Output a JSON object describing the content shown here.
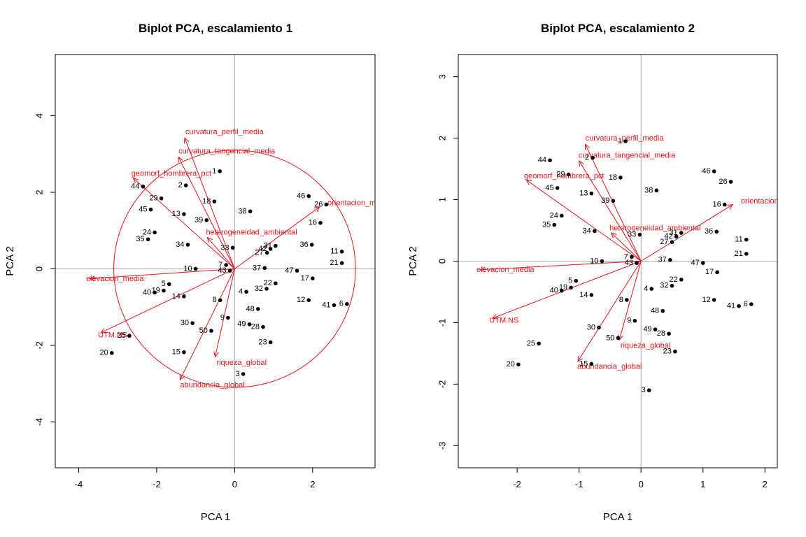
{
  "chart_data": [
    {
      "type": "scatter",
      "subtype": "pca-biplot",
      "title": "Biplot PCA, escalamiento 1",
      "xlabel": "PCA  1",
      "ylabel": "PCA  2",
      "xlim": [
        -4.6,
        3.6
      ],
      "ylim": [
        -5.2,
        5.6
      ],
      "xticks": [
        -4,
        -2,
        0,
        2
      ],
      "yticks": [
        -4,
        -2,
        0,
        2,
        4
      ],
      "reference_lines": [
        0,
        0
      ],
      "circle_radius": 3.1,
      "colors": {
        "points": "#000000",
        "arrows": "#e8141a",
        "axes": "#aaaaaa"
      },
      "points": [
        {
          "label": "1",
          "x": -0.38,
          "y": 2.55
        },
        {
          "label": "2",
          "x": -1.25,
          "y": 2.18
        },
        {
          "label": "3",
          "x": 0.22,
          "y": -2.75
        },
        {
          "label": "4",
          "x": 0.3,
          "y": -0.6
        },
        {
          "label": "5",
          "x": -1.68,
          "y": -0.4
        },
        {
          "label": "6",
          "x": 2.88,
          "y": -0.92
        },
        {
          "label": "7",
          "x": -0.22,
          "y": 0.1
        },
        {
          "label": "8",
          "x": -0.37,
          "y": -0.82
        },
        {
          "label": "9",
          "x": -0.17,
          "y": -1.28
        },
        {
          "label": "10",
          "x": -1.0,
          "y": 0.0
        },
        {
          "label": "11",
          "x": 2.75,
          "y": 0.45
        },
        {
          "label": "12",
          "x": 1.9,
          "y": -0.82
        },
        {
          "label": "13",
          "x": -1.3,
          "y": 1.43
        },
        {
          "label": "14",
          "x": -1.3,
          "y": -0.72
        },
        {
          "label": "15",
          "x": -1.3,
          "y": -2.18
        },
        {
          "label": "16",
          "x": 2.2,
          "y": 1.2
        },
        {
          "label": "17",
          "x": 2.0,
          "y": -0.25
        },
        {
          "label": "18",
          "x": -0.52,
          "y": 1.76
        },
        {
          "label": "19",
          "x": -1.82,
          "y": -0.57
        },
        {
          "label": "20",
          "x": -3.15,
          "y": -2.2
        },
        {
          "label": "21",
          "x": 2.75,
          "y": 0.15
        },
        {
          "label": "22",
          "x": 1.05,
          "y": -0.38
        },
        {
          "label": "23",
          "x": 0.92,
          "y": -1.92
        },
        {
          "label": "24",
          "x": -2.05,
          "y": 0.95
        },
        {
          "label": "25",
          "x": -2.7,
          "y": -1.75
        },
        {
          "label": "26",
          "x": 2.35,
          "y": 1.68
        },
        {
          "label": "27",
          "x": 0.83,
          "y": 0.42
        },
        {
          "label": "28",
          "x": 0.73,
          "y": -1.52
        },
        {
          "label": "29",
          "x": -1.88,
          "y": 1.84
        },
        {
          "label": "30",
          "x": -1.08,
          "y": -1.42
        },
        {
          "label": "31",
          "x": 1.05,
          "y": 0.6
        },
        {
          "label": "32",
          "x": 0.82,
          "y": -0.52
        },
        {
          "label": "33",
          "x": -0.05,
          "y": 0.55
        },
        {
          "label": "34",
          "x": -1.2,
          "y": 0.63
        },
        {
          "label": "35",
          "x": -2.22,
          "y": 0.77
        },
        {
          "label": "36",
          "x": 1.98,
          "y": 0.63
        },
        {
          "label": "37",
          "x": 0.77,
          "y": 0.02
        },
        {
          "label": "38",
          "x": 0.4,
          "y": 1.5
        },
        {
          "label": "39",
          "x": -0.72,
          "y": 1.27
        },
        {
          "label": "40",
          "x": -2.05,
          "y": -0.62
        },
        {
          "label": "41",
          "x": 2.55,
          "y": -0.95
        },
        {
          "label": "42",
          "x": 0.92,
          "y": 0.52
        },
        {
          "label": "43",
          "x": -0.12,
          "y": -0.05
        },
        {
          "label": "44",
          "x": -2.35,
          "y": 2.15
        },
        {
          "label": "45",
          "x": -2.15,
          "y": 1.55
        },
        {
          "label": "46",
          "x": 1.9,
          "y": 1.9
        },
        {
          "label": "47",
          "x": 1.6,
          "y": -0.05
        },
        {
          "label": "48",
          "x": 0.6,
          "y": -1.05
        },
        {
          "label": "49",
          "x": 0.38,
          "y": -1.45
        },
        {
          "label": "50",
          "x": -0.6,
          "y": -1.62
        }
      ],
      "arrows": [
        {
          "label": "curvatura_perfil_media",
          "x": -1.28,
          "y": 3.42
        },
        {
          "label": "curvatura_tangencial_media",
          "x": -1.44,
          "y": 2.92
        },
        {
          "label": "geomorf_hombrera_pct",
          "x": -2.6,
          "y": 2.37
        },
        {
          "label": "orientacion_media",
          "x": 2.18,
          "y": 1.62
        },
        {
          "label": "heterogeneidad_ambiental",
          "x": -0.7,
          "y": 0.82
        },
        {
          "label": "elevacion_media",
          "x": -3.72,
          "y": -0.26
        },
        {
          "label": "UTM.NS",
          "x": -3.43,
          "y": -1.67
        },
        {
          "label": "riqueza_global",
          "x": -0.5,
          "y": -2.3
        },
        {
          "label": "abundancia_global",
          "x": -1.4,
          "y": -2.9
        }
      ]
    },
    {
      "type": "scatter",
      "subtype": "pca-biplot",
      "title": "Biplot PCA, escalamiento 2",
      "xlabel": "PCA  1",
      "ylabel": "PCA  2",
      "xlim": [
        -2.95,
        2.2
      ],
      "ylim": [
        -3.36,
        3.36
      ],
      "xticks": [
        -2,
        -1,
        0,
        1,
        2
      ],
      "yticks": [
        -3,
        -2,
        -1,
        0,
        1,
        2,
        3
      ],
      "reference_lines": [
        0,
        0
      ],
      "colors": {
        "points": "#000000",
        "arrows": "#e8141a",
        "axes": "#aaaaaa"
      },
      "points": [
        {
          "label": "1",
          "x": -0.25,
          "y": 1.95
        },
        {
          "label": "2",
          "x": -0.78,
          "y": 1.68
        },
        {
          "label": "3",
          "x": 0.13,
          "y": -2.1
        },
        {
          "label": "4",
          "x": 0.17,
          "y": -0.45
        },
        {
          "label": "5",
          "x": -1.05,
          "y": -0.32
        },
        {
          "label": "6",
          "x": 1.78,
          "y": -0.7
        },
        {
          "label": "7",
          "x": -0.15,
          "y": 0.07
        },
        {
          "label": "8",
          "x": -0.23,
          "y": -0.63
        },
        {
          "label": "9",
          "x": -0.1,
          "y": -0.97
        },
        {
          "label": "10",
          "x": -0.63,
          "y": 0.0
        },
        {
          "label": "11",
          "x": 1.7,
          "y": 0.35
        },
        {
          "label": "12",
          "x": 1.18,
          "y": -0.63
        },
        {
          "label": "13",
          "x": -0.8,
          "y": 1.1
        },
        {
          "label": "14",
          "x": -0.8,
          "y": -0.55
        },
        {
          "label": "15",
          "x": -0.8,
          "y": -1.67
        },
        {
          "label": "16",
          "x": 1.35,
          "y": 0.92
        },
        {
          "label": "17",
          "x": 1.23,
          "y": -0.18
        },
        {
          "label": "18",
          "x": -0.33,
          "y": 1.36
        },
        {
          "label": "19",
          "x": -1.13,
          "y": -0.43
        },
        {
          "label": "20",
          "x": -1.98,
          "y": -1.68
        },
        {
          "label": "21",
          "x": 1.7,
          "y": 0.12
        },
        {
          "label": "22",
          "x": 0.65,
          "y": -0.3
        },
        {
          "label": "23",
          "x": 0.55,
          "y": -1.47
        },
        {
          "label": "24",
          "x": -1.28,
          "y": 0.74
        },
        {
          "label": "25",
          "x": -1.65,
          "y": -1.34
        },
        {
          "label": "26",
          "x": 1.45,
          "y": 1.29
        },
        {
          "label": "27",
          "x": 0.5,
          "y": 0.31
        },
        {
          "label": "28",
          "x": 0.45,
          "y": -1.18
        },
        {
          "label": "29",
          "x": -1.17,
          "y": 1.41
        },
        {
          "label": "30",
          "x": -0.68,
          "y": -1.08
        },
        {
          "label": "31",
          "x": 0.65,
          "y": 0.46
        },
        {
          "label": "32",
          "x": 0.5,
          "y": -0.4
        },
        {
          "label": "33",
          "x": -0.02,
          "y": 0.43
        },
        {
          "label": "34",
          "x": -0.75,
          "y": 0.49
        },
        {
          "label": "35",
          "x": -1.4,
          "y": 0.59
        },
        {
          "label": "36",
          "x": 1.22,
          "y": 0.48
        },
        {
          "label": "37",
          "x": 0.47,
          "y": 0.02
        },
        {
          "label": "38",
          "x": 0.25,
          "y": 1.15
        },
        {
          "label": "39",
          "x": -0.45,
          "y": 0.98
        },
        {
          "label": "40",
          "x": -1.28,
          "y": -0.48
        },
        {
          "label": "41",
          "x": 1.58,
          "y": -0.73
        },
        {
          "label": "42",
          "x": 0.57,
          "y": 0.4
        },
        {
          "label": "43",
          "x": -0.07,
          "y": -0.03
        },
        {
          "label": "44",
          "x": -1.47,
          "y": 1.64
        },
        {
          "label": "45",
          "x": -1.35,
          "y": 1.19
        },
        {
          "label": "46",
          "x": 1.18,
          "y": 1.46
        },
        {
          "label": "47",
          "x": 1.0,
          "y": -0.03
        },
        {
          "label": "48",
          "x": 0.35,
          "y": -0.81
        },
        {
          "label": "49",
          "x": 0.23,
          "y": -1.11
        },
        {
          "label": "50",
          "x": -0.37,
          "y": -1.25
        }
      ],
      "arrows": [
        {
          "label": "curvatura_perfil_media",
          "x": -0.9,
          "y": 1.9
        },
        {
          "label": "curvatura_tangencial_media",
          "x": -1.0,
          "y": 1.63
        },
        {
          "label": "geomorf_hombrera_pct",
          "x": -1.85,
          "y": 1.32
        },
        {
          "label": "orientacion_media",
          "x": 1.48,
          "y": 0.92
        },
        {
          "label": "heterogeneidad_ambiental",
          "x": -0.48,
          "y": 0.46
        },
        {
          "label": "elevacion_media",
          "x": -2.6,
          "y": -0.14
        },
        {
          "label": "UTM.NS",
          "x": -2.4,
          "y": -0.93
        },
        {
          "label": "riqueza_global",
          "x": -0.35,
          "y": -1.28
        },
        {
          "label": "abundancia_global",
          "x": -1.02,
          "y": -1.63
        }
      ]
    }
  ]
}
